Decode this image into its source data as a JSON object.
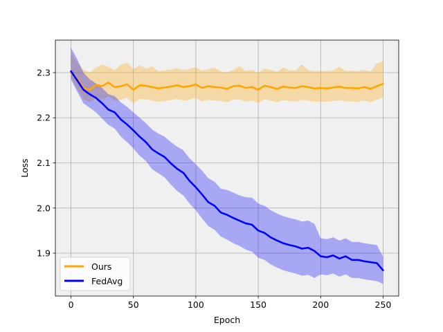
{
  "chart_data": {
    "type": "line",
    "title": "",
    "xlabel": "Epoch",
    "ylabel": "Loss",
    "xlim": [
      -12.5,
      262.5
    ],
    "ylim": [
      1.805,
      2.372
    ],
    "xticks": [
      0,
      50,
      100,
      150,
      200,
      250
    ],
    "yticks": [
      1.9,
      2.0,
      2.1,
      2.2,
      2.3
    ],
    "grid": true,
    "legend": "lower-left",
    "background": "#f0f0f0",
    "series": [
      {
        "name": "Ours",
        "color": "#ffa500",
        "x": [
          0,
          5,
          10,
          15,
          20,
          25,
          30,
          35,
          40,
          45,
          50,
          55,
          60,
          65,
          70,
          75,
          80,
          85,
          90,
          95,
          100,
          105,
          110,
          115,
          120,
          125,
          130,
          135,
          140,
          145,
          150,
          155,
          160,
          165,
          170,
          175,
          180,
          185,
          190,
          195,
          200,
          205,
          210,
          215,
          220,
          225,
          230,
          235,
          240,
          245,
          250
        ],
        "y": [
          2.3,
          2.287,
          2.266,
          2.262,
          2.273,
          2.27,
          2.278,
          2.268,
          2.27,
          2.274,
          2.262,
          2.272,
          2.271,
          2.268,
          2.265,
          2.267,
          2.269,
          2.272,
          2.268,
          2.27,
          2.274,
          2.266,
          2.27,
          2.268,
          2.267,
          2.264,
          2.27,
          2.271,
          2.266,
          2.268,
          2.262,
          2.271,
          2.268,
          2.264,
          2.269,
          2.267,
          2.266,
          2.27,
          2.268,
          2.265,
          2.266,
          2.265,
          2.267,
          2.269,
          2.266,
          2.266,
          2.265,
          2.268,
          2.264,
          2.27,
          2.275
        ],
        "lower": [
          2.29,
          2.262,
          2.241,
          2.234,
          2.243,
          2.24,
          2.247,
          2.238,
          2.24,
          2.244,
          2.232,
          2.242,
          2.241,
          2.238,
          2.235,
          2.237,
          2.239,
          2.242,
          2.238,
          2.24,
          2.244,
          2.236,
          2.24,
          2.238,
          2.237,
          2.234,
          2.24,
          2.241,
          2.236,
          2.238,
          2.232,
          2.241,
          2.238,
          2.234,
          2.239,
          2.237,
          2.236,
          2.24,
          2.238,
          2.235,
          2.236,
          2.235,
          2.237,
          2.239,
          2.236,
          2.236,
          2.235,
          2.238,
          2.234,
          2.24,
          2.245
        ],
        "upper": [
          2.345,
          2.322,
          2.306,
          2.3,
          2.311,
          2.318,
          2.313,
          2.306,
          2.318,
          2.322,
          2.308,
          2.316,
          2.309,
          2.314,
          2.303,
          2.305,
          2.307,
          2.31,
          2.306,
          2.308,
          2.312,
          2.304,
          2.308,
          2.311,
          2.303,
          2.3,
          2.306,
          2.314,
          2.304,
          2.306,
          2.3,
          2.309,
          2.306,
          2.302,
          2.311,
          2.305,
          2.304,
          2.318,
          2.306,
          2.303,
          2.304,
          2.303,
          2.305,
          2.313,
          2.304,
          2.304,
          2.303,
          2.306,
          2.302,
          2.32,
          2.325
        ]
      },
      {
        "name": "FedAvg",
        "color": "#0000ff",
        "x": [
          0,
          5,
          10,
          15,
          20,
          25,
          30,
          35,
          40,
          45,
          50,
          55,
          60,
          65,
          70,
          75,
          80,
          85,
          90,
          95,
          100,
          105,
          110,
          115,
          120,
          125,
          130,
          135,
          140,
          145,
          150,
          155,
          160,
          165,
          170,
          175,
          180,
          185,
          190,
          195,
          200,
          205,
          210,
          215,
          220,
          225,
          230,
          235,
          240,
          245,
          250
        ],
        "y": [
          2.303,
          2.283,
          2.262,
          2.252,
          2.244,
          2.232,
          2.218,
          2.212,
          2.196,
          2.185,
          2.172,
          2.158,
          2.146,
          2.13,
          2.121,
          2.113,
          2.099,
          2.087,
          2.078,
          2.06,
          2.046,
          2.03,
          2.013,
          2.005,
          1.99,
          1.985,
          1.978,
          1.972,
          1.966,
          1.963,
          1.95,
          1.945,
          1.935,
          1.928,
          1.922,
          1.918,
          1.915,
          1.91,
          1.912,
          1.905,
          1.893,
          1.891,
          1.895,
          1.888,
          1.893,
          1.885,
          1.885,
          1.882,
          1.88,
          1.878,
          1.862
        ],
        "lower": [
          2.285,
          2.258,
          2.232,
          2.222,
          2.212,
          2.198,
          2.184,
          2.176,
          2.158,
          2.146,
          2.132,
          2.116,
          2.104,
          2.086,
          2.077,
          2.068,
          2.052,
          2.038,
          2.028,
          2.01,
          1.995,
          1.977,
          1.96,
          1.952,
          1.937,
          1.93,
          1.922,
          1.916,
          1.908,
          1.903,
          1.89,
          1.885,
          1.875,
          1.868,
          1.862,
          1.858,
          1.855,
          1.85,
          1.852,
          1.845,
          1.853,
          1.851,
          1.855,
          1.848,
          1.853,
          1.845,
          1.845,
          1.842,
          1.84,
          1.838,
          1.832
        ],
        "upper": [
          2.355,
          2.33,
          2.3,
          2.285,
          2.276,
          2.266,
          2.252,
          2.248,
          2.234,
          2.224,
          2.212,
          2.2,
          2.188,
          2.174,
          2.165,
          2.158,
          2.146,
          2.136,
          2.128,
          2.11,
          2.097,
          2.083,
          2.066,
          2.058,
          2.043,
          2.04,
          2.034,
          2.028,
          2.024,
          2.023,
          2.01,
          2.005,
          1.995,
          1.988,
          1.982,
          1.978,
          1.975,
          1.97,
          1.972,
          1.965,
          1.933,
          1.931,
          1.935,
          1.928,
          1.933,
          1.925,
          1.925,
          1.922,
          1.92,
          1.918,
          1.892
        ]
      }
    ]
  }
}
